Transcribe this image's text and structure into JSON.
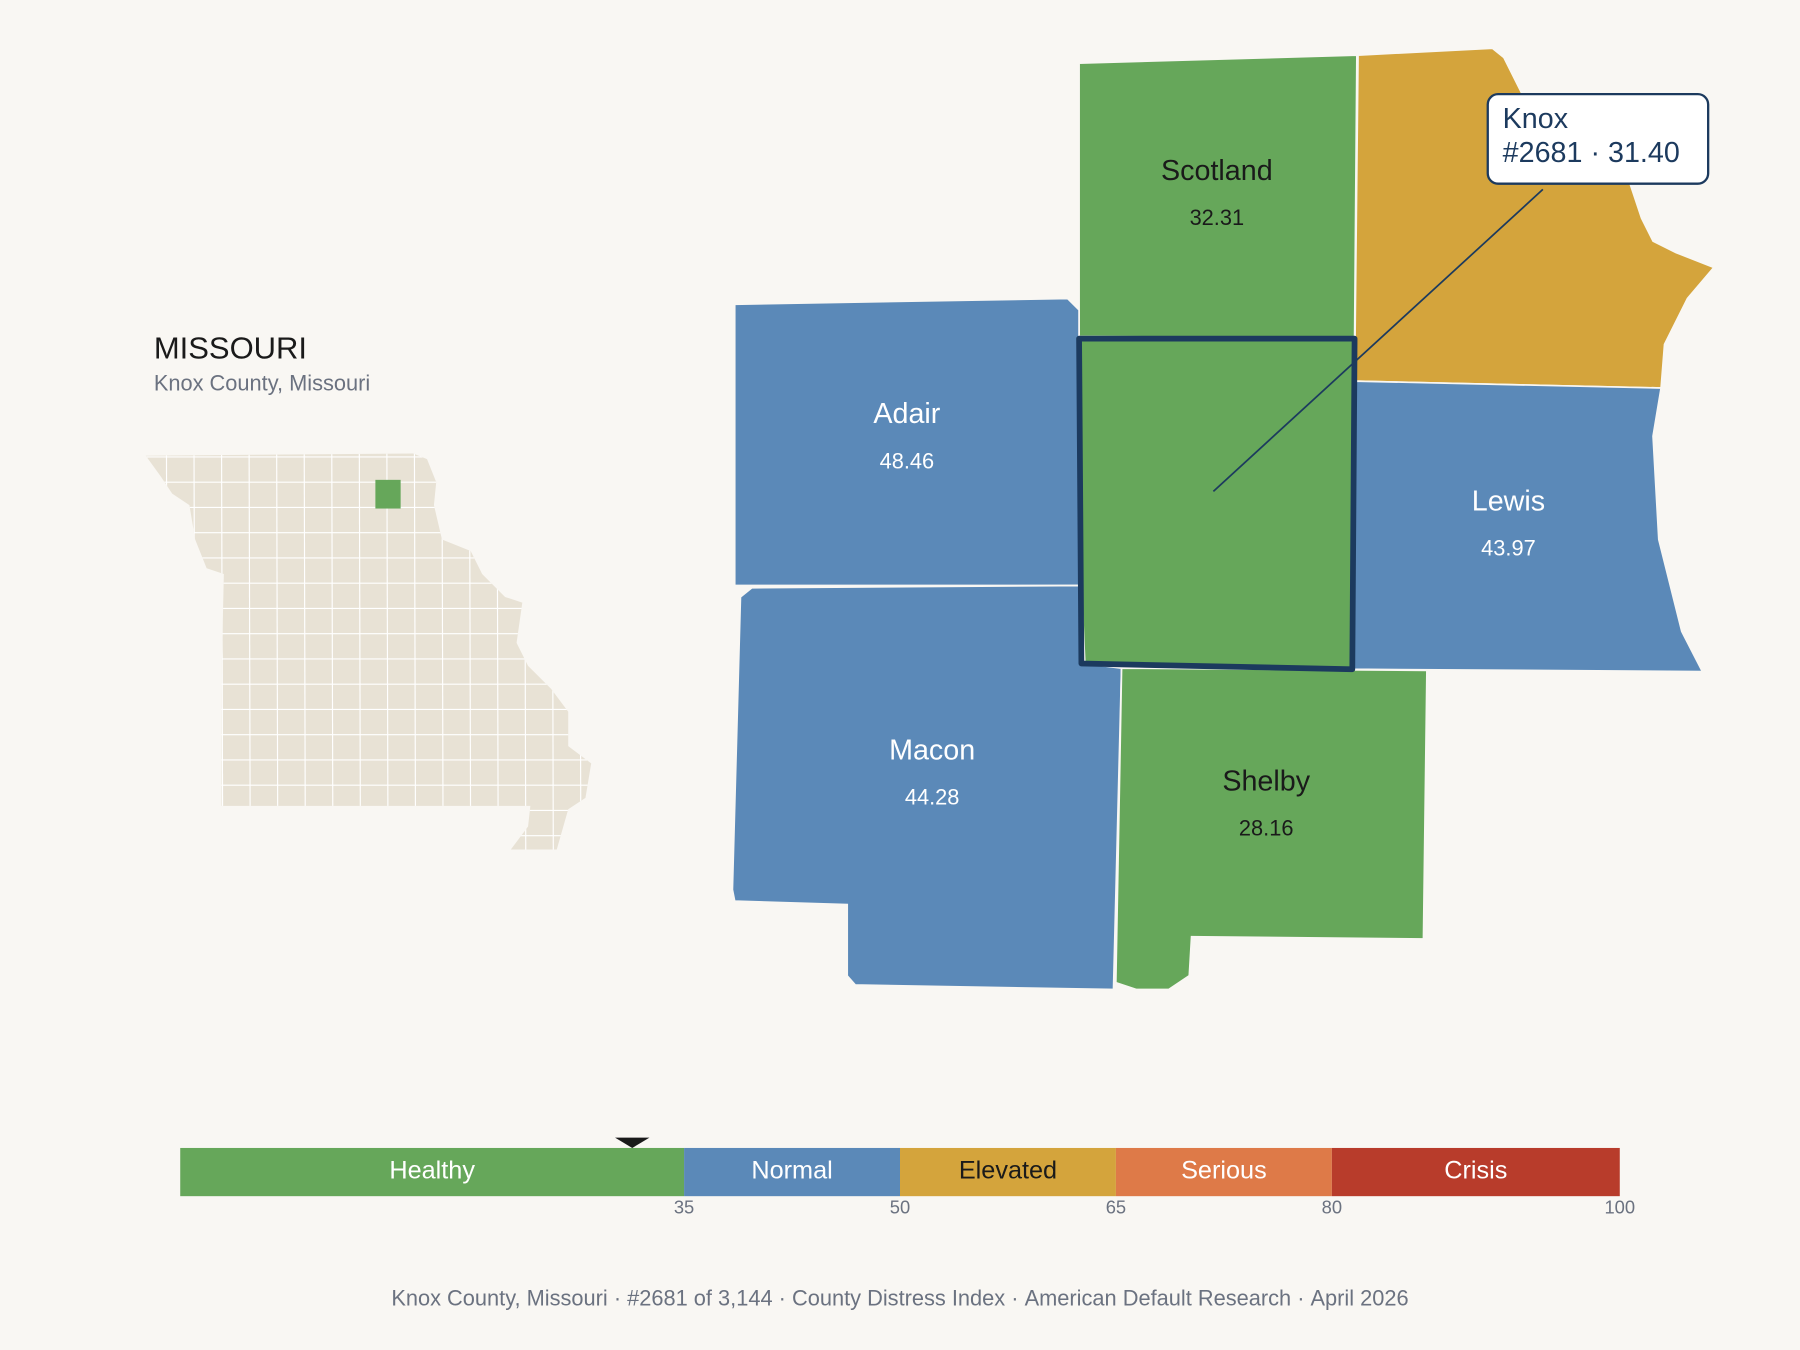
{
  "header": {
    "title": "MISSOURI",
    "subtitle": "Knox County, Missouri"
  },
  "counties": [
    {
      "name": "Scotland",
      "value": 32.31,
      "color": "#66a75a"
    },
    {
      "color": "#66a75a",
      "selected": true
    },
    {
      "color": "#d4a43c"
    },
    {
      "name": "Adair",
      "value": 48.46,
      "color": "#5b89b8"
    },
    {
      "name": "Lewis",
      "value": 43.97,
      "color": "#5b89b8"
    },
    {
      "name": "Macon",
      "value": 44.28,
      "color": "#5b89b8"
    },
    {
      "name": "Shelby",
      "value": 28.16,
      "color": "#66a75a"
    }
  ],
  "tooltip": {
    "name": "Knox",
    "rank": "#2681",
    "separator": "·",
    "score": 31.4,
    "score_label": "31.40"
  },
  "legend": {
    "xlim": [
      0,
      100
    ],
    "bands": [
      {
        "label": "Healthy",
        "to": 35,
        "color": "#66a75a"
      },
      {
        "label": "Normal",
        "to": 50,
        "color": "#5b89b8"
      },
      {
        "label": "Elevated",
        "to": 65,
        "color": "#d4a43c"
      },
      {
        "label": "Serious",
        "to": 80,
        "color": "#de7a48"
      },
      {
        "label": "Crisis",
        "to": 100,
        "color": "#b83c2b"
      }
    ]
  },
  "footer": {
    "parts": [
      "Knox County, Missouri",
      "#2681 of 3,144",
      "County Distress Index",
      "American Default Research",
      "April 2026"
    ],
    "separator": "·"
  }
}
